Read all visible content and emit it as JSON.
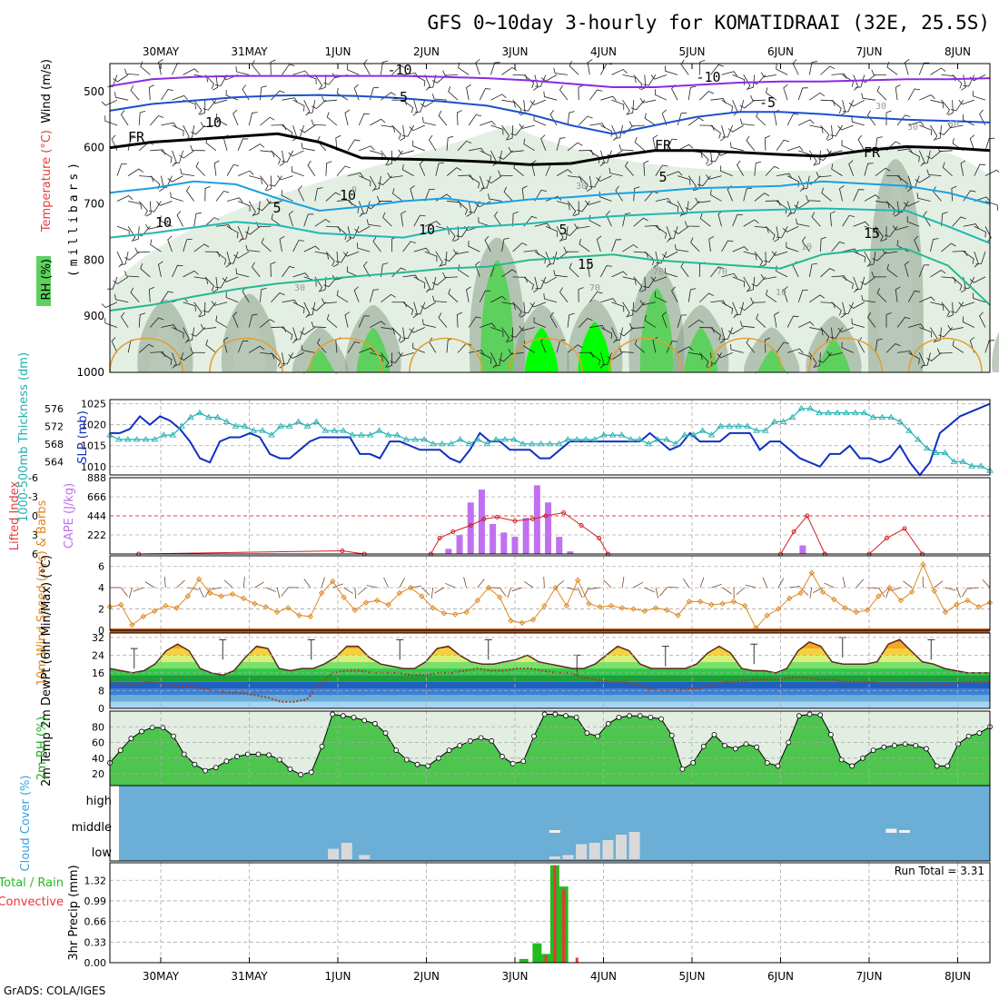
{
  "title": "GFS 0~10day 3-hourly for KOMATIDRAAI (32E, 25.5S)",
  "footer": "GrADS: COLA/IGES",
  "date_labels": [
    "30MAY",
    "31MAY",
    "1JUN",
    "2JUN",
    "3JUN",
    "4JUN",
    "5JUN",
    "6JUN",
    "7JUN",
    "8JUN"
  ],
  "colors": {
    "frame": "#000000",
    "grid": "#aaaaaa",
    "rh_light": "#e4efe4",
    "rh_mid": "#b8c8b8",
    "rh_dark": "#8aa08a",
    "rh_green": "#5ed05e",
    "rh_bright": "#00ff00",
    "slp": "#1030c0",
    "thickness": "#20b0b0",
    "lifted_index": "#d02020",
    "cape": "#c070f0",
    "wind10": "#e08820",
    "dewpoint": "#a04020",
    "cloud": "#6baed6",
    "cloud_low": "#d9d9d9",
    "precip_total": "#22bb22",
    "precip_conv": "#ee3333"
  },
  "chart_data": [
    {
      "id": "upper_air",
      "type": "heatmap",
      "ylabel": "(millibars)",
      "legend_labels": [
        "Wind (m/s)",
        "Temperature (°C)",
        "RH (%)"
      ],
      "y_ticks": [
        500,
        600,
        700,
        800,
        900,
        1000
      ],
      "ylim": [
        450,
        1000
      ],
      "y_scale": "pressure",
      "x_labels": [
        "30MAY",
        "31MAY",
        "1JUN",
        "2JUN",
        "3JUN",
        "4JUN",
        "5JUN",
        "6JUN",
        "7JUN",
        "8JUN"
      ],
      "contour_labels": [
        "-10",
        "-10",
        "-5",
        "-5",
        "FR",
        "FR",
        "FR",
        "5",
        "5",
        "5",
        "10",
        "10",
        "15",
        "15",
        "10",
        "10",
        "30",
        "30",
        "30",
        "30",
        "70",
        "70",
        "70",
        "10",
        "10",
        "50",
        "0"
      ],
      "isotherms": [
        {
          "name": "-10",
          "color": "#8a2be2",
          "p": [
            490,
            478,
            474,
            472,
            472,
            472,
            472,
            472,
            474,
            476,
            480,
            486,
            492,
            492,
            488,
            484,
            482,
            482,
            480,
            478,
            478,
            476
          ]
        },
        {
          "name": "-5",
          "color": "#1a4fd0",
          "p": [
            534,
            522,
            516,
            510,
            507,
            506,
            508,
            512,
            518,
            525,
            540,
            560,
            575,
            560,
            545,
            536,
            536,
            540,
            546,
            550,
            552,
            555
          ]
        },
        {
          "name": "FR",
          "color": "#000000",
          "p": [
            600,
            590,
            585,
            580,
            575,
            590,
            618,
            620,
            622,
            625,
            630,
            628,
            615,
            605,
            605,
            608,
            612,
            615,
            605,
            598,
            600,
            605
          ]
        },
        {
          "name": "5",
          "color": "#1aa0e0",
          "p": [
            680,
            672,
            660,
            665,
            690,
            712,
            705,
            695,
            690,
            700,
            692,
            688,
            682,
            678,
            672,
            670,
            668,
            660,
            664,
            668,
            680,
            700
          ]
        },
        {
          "name": "10",
          "color": "#20b8b0",
          "p": [
            760,
            752,
            742,
            732,
            738,
            752,
            756,
            760,
            745,
            740,
            735,
            728,
            722,
            718,
            715,
            712,
            710,
            708,
            710,
            712,
            740,
            770
          ]
        },
        {
          "name": "15",
          "color": "#26b890",
          "p": [
            890,
            880,
            865,
            852,
            842,
            835,
            828,
            822,
            815,
            812,
            800,
            795,
            790,
            800,
            805,
            810,
            815,
            790,
            782,
            780,
            810,
            880
          ]
        }
      ],
      "rh_cells": [
        {
          "day": 0.05,
          "p": 870,
          "level": "dark"
        },
        {
          "day": 1.0,
          "p": 860,
          "level": "dark"
        },
        {
          "day": 1.8,
          "p": 920,
          "level": "green"
        },
        {
          "day": 2.4,
          "p": 880,
          "level": "green"
        },
        {
          "day": 3.8,
          "p": 760,
          "level": "green"
        },
        {
          "day": 4.3,
          "p": 880,
          "level": "bright"
        },
        {
          "day": 4.9,
          "p": 870,
          "level": "bright"
        },
        {
          "day": 5.6,
          "p": 810,
          "level": "green"
        },
        {
          "day": 6.1,
          "p": 880,
          "level": "green"
        },
        {
          "day": 6.9,
          "p": 920,
          "level": "green"
        },
        {
          "day": 7.6,
          "p": 900,
          "level": "green"
        },
        {
          "day": 8.3,
          "p": 620,
          "level": "dark"
        },
        {
          "day": 9.7,
          "p": 880,
          "level": "green"
        }
      ]
    },
    {
      "id": "slp_thickness",
      "type": "line",
      "ylabel_left": "1000-500mb Thickness (dm)",
      "ylabel_right": "SLP (mb)",
      "y_ticks_left": [
        564,
        568,
        572,
        576
      ],
      "y_ticks_right": [
        1010,
        1015,
        1020,
        1025
      ],
      "ylim_right": [
        1008,
        1026
      ],
      "series": [
        {
          "name": "SLP",
          "unit": "mb",
          "values": [
            1018,
            1018,
            1019,
            1022,
            1020,
            1022,
            1021,
            1019,
            1016,
            1012,
            1011,
            1016,
            1017,
            1017,
            1018,
            1017,
            1013,
            1012,
            1012,
            1014,
            1016,
            1017,
            1017,
            1017,
            1017,
            1013,
            1013,
            1012,
            1016,
            1016,
            1015,
            1014,
            1014,
            1014,
            1012,
            1011,
            1014,
            1018,
            1016,
            1016,
            1014,
            1014,
            1014,
            1012,
            1012,
            1014,
            1016,
            1016,
            1016,
            1016,
            1016,
            1016,
            1016,
            1016,
            1018,
            1016,
            1014,
            1015,
            1018,
            1016,
            1016,
            1016,
            1018,
            1018,
            1018,
            1014,
            1016,
            1016,
            1014,
            1012,
            1011,
            1010,
            1013,
            1013,
            1015,
            1012,
            1012,
            1011,
            1012,
            1015,
            1011,
            1008,
            1011,
            1018,
            1020,
            1022,
            1023,
            1024,
            1025
          ]
        },
        {
          "name": "1000-500mb Thickness",
          "unit": "dm",
          "values": [
            570,
            569,
            569,
            569,
            569,
            569,
            570,
            570,
            572,
            574,
            575,
            574,
            574,
            573,
            572,
            572,
            571,
            571,
            570,
            572,
            572,
            573,
            572,
            573,
            571,
            571,
            571,
            570,
            570,
            570,
            571,
            570,
            570,
            569,
            569,
            569,
            568,
            568,
            568,
            569,
            568,
            569,
            568,
            569,
            569,
            569,
            568,
            568,
            568,
            568,
            568,
            569,
            569,
            569,
            569,
            570,
            570,
            570,
            569,
            569,
            568,
            569,
            569,
            568,
            570,
            570,
            571,
            570,
            572,
            572,
            572,
            572,
            571,
            571,
            573,
            573,
            574,
            576,
            576,
            575,
            575,
            575,
            575,
            575,
            575,
            574,
            574,
            574,
            573,
            571,
            569,
            567,
            566,
            566,
            564,
            564,
            563,
            563,
            562
          ]
        }
      ]
    },
    {
      "id": "cape_li",
      "type": "bar",
      "ylabel_left": "Lifted Index",
      "ylabel_right": "CAPE (J/kg)",
      "y_ticks_left": [
        6,
        3,
        0,
        -3,
        -6
      ],
      "y_ticks_right": [
        222,
        444,
        666,
        888
      ],
      "ylim_right": [
        0,
        888
      ],
      "cape_x_days": [
        3.5,
        3.625,
        3.75,
        3.875,
        4.0,
        4.125,
        4.25,
        4.375,
        4.5,
        4.625,
        4.75,
        4.875,
        7.5
      ],
      "cape_values": [
        60,
        220,
        600,
        750,
        350,
        250,
        200,
        420,
        800,
        600,
        200,
        30,
        100
      ],
      "li_x_days": [
        0.0,
        2.3,
        2.55,
        3.3,
        3.4,
        3.55,
        3.75,
        3.9,
        4.05,
        4.25,
        4.45,
        4.6,
        4.8,
        5.0,
        5.2,
        5.3,
        7.25,
        7.4,
        7.55,
        7.75,
        8.25,
        8.45,
        8.65,
        8.85
      ],
      "li_values": [
        6,
        5.5,
        6,
        6,
        3.5,
        2.5,
        1.5,
        0.5,
        0.2,
        0.8,
        0.5,
        0.0,
        -0.5,
        1.5,
        3.5,
        6,
        6,
        2.5,
        0.0,
        6,
        6,
        3.5,
        2.0,
        6
      ]
    },
    {
      "id": "wind10m",
      "type": "line",
      "ylabel": "10m Wind Speed (m/s) & Barbs",
      "y_ticks": [
        0,
        2,
        4,
        6
      ],
      "ylim": [
        0,
        7
      ],
      "series": [
        {
          "name": "10m Wind Speed",
          "unit": "m/s",
          "values": [
            2.2,
            2.4,
            0.5,
            1.3,
            1.8,
            2.3,
            2.1,
            3.2,
            4.8,
            3.5,
            3.2,
            3.4,
            3.0,
            2.5,
            2.2,
            1.7,
            2.1,
            1.4,
            1.3,
            3.5,
            4.6,
            3.1,
            1.9,
            2.6,
            2.8,
            2.4,
            3.5,
            4.0,
            3.2,
            2.1,
            1.6,
            1.5,
            1.7,
            2.8,
            4.0,
            3.1,
            0.9,
            0.7,
            1.0,
            2.3,
            4.0,
            2.3,
            4.7,
            2.5,
            2.2,
            2.3,
            2.1,
            2.0,
            1.8,
            2.1,
            1.9,
            1.4,
            2.7,
            2.7,
            2.4,
            2.5,
            2.7,
            2.3,
            0.2,
            1.4,
            2.0,
            3.0,
            3.5,
            5.4,
            3.6,
            2.9,
            2.1,
            1.7,
            1.9,
            3.2,
            4.0,
            2.8,
            3.6,
            6.2,
            3.7,
            1.7,
            2.4,
            2.8,
            2.2,
            2.6
          ]
        }
      ]
    },
    {
      "id": "temp2m",
      "type": "area",
      "ylabel": "2m Temp 2m DewPt (6hr Min/Max) (°C)",
      "y_ticks": [
        0,
        8,
        16,
        24,
        32
      ],
      "ylim": [
        0,
        34
      ],
      "series": [
        {
          "name": "2m Temp",
          "unit": "°C",
          "values": [
            18,
            17,
            16,
            17,
            20,
            26,
            29,
            26,
            18,
            16,
            15,
            17,
            23,
            28,
            27,
            18,
            17,
            18,
            18,
            20,
            23,
            28,
            28,
            23,
            20,
            19,
            18,
            18,
            21,
            27,
            28,
            24,
            21,
            20,
            20,
            21,
            22,
            24,
            21,
            20,
            19,
            18,
            18,
            20,
            24,
            28,
            26,
            20,
            18,
            18,
            18,
            18,
            20,
            25,
            28,
            25,
            18,
            17,
            17,
            16,
            18,
            26,
            30,
            28,
            21,
            20,
            20,
            20,
            21,
            29,
            31,
            26,
            21,
            20,
            18,
            17,
            16,
            16,
            16
          ]
        },
        {
          "name": "2m DewPt",
          "unit": "°C",
          "values": [
            12,
            11,
            11,
            12,
            11,
            10,
            10,
            9,
            8,
            7,
            7,
            6,
            5,
            3,
            3,
            4,
            11,
            16,
            17,
            17,
            16,
            16,
            16,
            15,
            15,
            16,
            16,
            17,
            18,
            17,
            17,
            18,
            18,
            17,
            16,
            16,
            14,
            13,
            12,
            12,
            11,
            9,
            8,
            8,
            9,
            9,
            11,
            12,
            12,
            13,
            13,
            13,
            14,
            14,
            13,
            13,
            12,
            12,
            12,
            11,
            11,
            11,
            11,
            11,
            11,
            12,
            12,
            12
          ]
        }
      ],
      "max_bars": [
        27,
        31,
        31,
        31,
        31,
        24,
        28,
        29,
        32,
        31
      ]
    },
    {
      "id": "rh2m",
      "type": "area",
      "ylabel": "2m RH (%)",
      "y_ticks": [
        20,
        40,
        60,
        80
      ],
      "ylim": [
        5,
        100
      ],
      "series": [
        {
          "name": "2m RH",
          "unit": "%",
          "values": [
            34,
            50,
            65,
            74,
            79,
            79,
            68,
            45,
            32,
            24,
            28,
            36,
            42,
            45,
            45,
            44,
            38,
            26,
            19,
            22,
            55,
            96,
            94,
            92,
            88,
            84,
            72,
            50,
            38,
            32,
            30,
            40,
            50,
            56,
            62,
            66,
            62,
            42,
            33,
            36,
            68,
            96,
            96,
            94,
            92,
            72,
            68,
            84,
            92,
            94,
            94,
            92,
            90,
            69,
            26,
            34,
            55,
            70,
            56,
            52,
            58,
            54,
            34,
            30,
            60,
            94,
            96,
            95,
            70,
            38,
            30,
            40,
            50,
            54,
            56,
            58,
            56,
            52,
            30,
            30,
            58,
            68,
            72,
            80
          ]
        }
      ]
    },
    {
      "id": "cloud",
      "type": "bar",
      "ylabel": "Cloud Cover (%)",
      "levels": [
        "high",
        "middle",
        "low"
      ],
      "low_x_days": [
        2.2,
        2.35,
        2.55,
        4.7,
        4.85,
        5.0,
        5.15,
        5.3,
        5.45,
        5.6
      ],
      "low_values": [
        38,
        60,
        15,
        10,
        15,
        55,
        60,
        70,
        90,
        100
      ],
      "mid_x_days": [
        4.7,
        8.5,
        8.65
      ],
      "mid_values": [
        10,
        15,
        10
      ]
    },
    {
      "id": "precip",
      "type": "bar",
      "ylabel": "3hr Precip (mm)",
      "legend_labels": [
        "Total / Rain",
        "Convective"
      ],
      "annotation": "Run Total = 3.31",
      "y_ticks": [
        0,
        0.33,
        0.66,
        0.99,
        1.32
      ],
      "ylim": [
        0,
        1.6
      ],
      "x_days": [
        4.35,
        4.5,
        4.6,
        4.7,
        4.8,
        4.95
      ],
      "total": [
        0.06,
        0.31,
        0.14,
        1.56,
        1.22,
        0.0
      ],
      "convective": [
        0.0,
        0.0,
        0.12,
        1.56,
        1.18,
        0.08
      ]
    }
  ]
}
